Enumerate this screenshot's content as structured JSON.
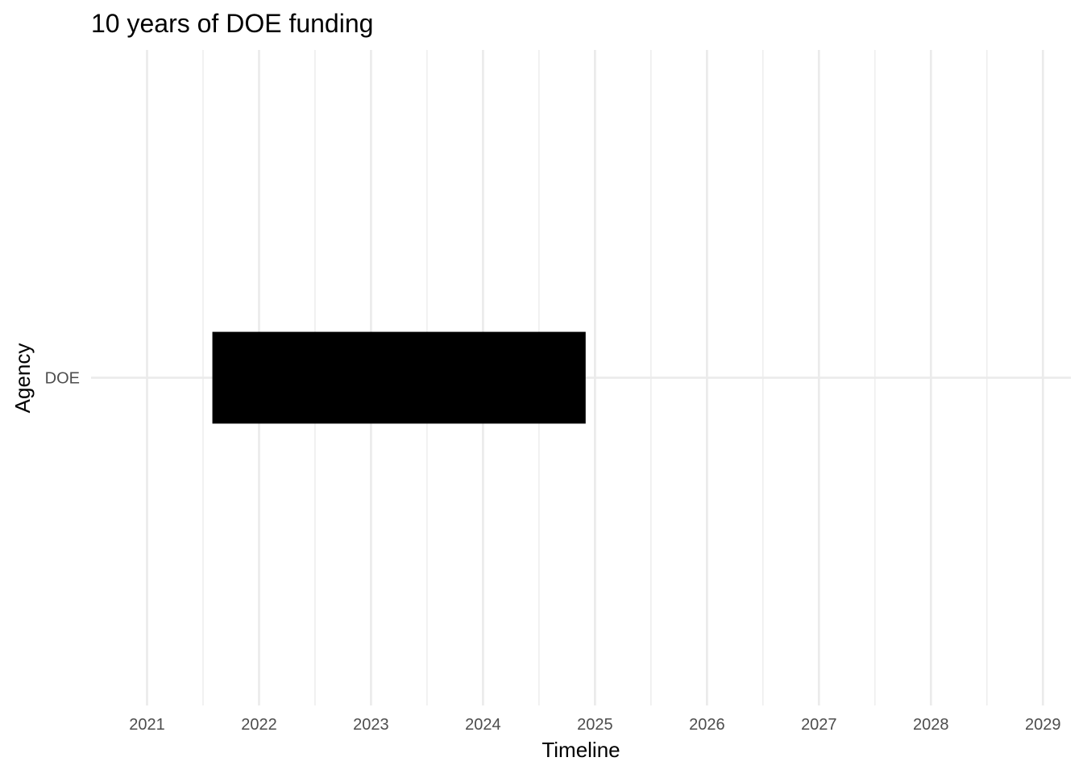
{
  "chart_data": {
    "type": "bar",
    "orientation": "horizontal",
    "title": "10 years of  DOE funding",
    "xlabel": "Timeline",
    "ylabel": "Agency",
    "x_ticks": [
      "2021",
      "2022",
      "2023",
      "2024",
      "2025",
      "2026",
      "2027",
      "2028",
      "2029"
    ],
    "categories": [
      "DOE"
    ],
    "series": [
      {
        "values": [
          {
            "category": "DOE",
            "start": "2021-08",
            "end": "2024-12"
          }
        ]
      }
    ],
    "xlim": [
      "2020-07",
      "2029-04"
    ],
    "grid": true,
    "legend": "none",
    "colors": {
      "bar": "#000000",
      "grid": "#ebebeb",
      "tick_text": "#4d4d4d"
    }
  }
}
